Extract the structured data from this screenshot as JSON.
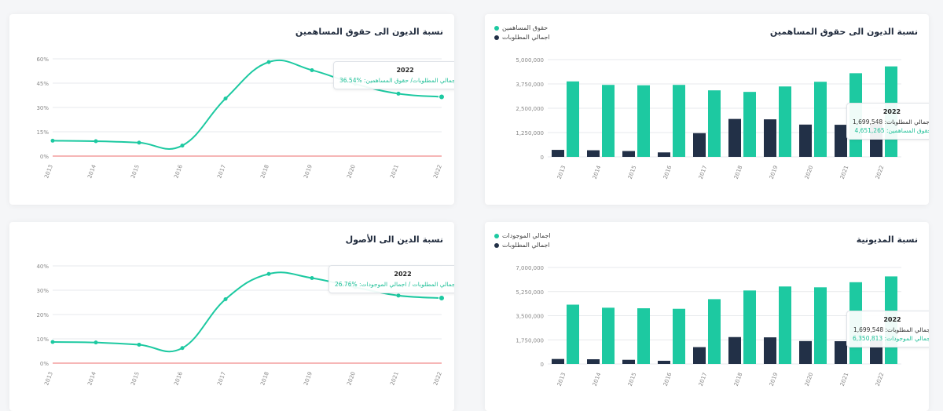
{
  "colors": {
    "green": "#1dc9a1",
    "navy": "#223047",
    "zero_line": "#f08a8a",
    "grid": "#e7e9ec",
    "axis_text": "#888888"
  },
  "chart_data": [
    {
      "id": "debt-equity-line",
      "type": "line",
      "title": "نسبة الديون الى حقوق المساهمين",
      "categories": [
        "2013",
        "2014",
        "2015",
        "2016",
        "2017",
        "2018",
        "2019",
        "2020",
        "2021",
        "2022"
      ],
      "series": [
        {
          "values": [
            9.5,
            9.2,
            8.3,
            6.5,
            35.5,
            58,
            53,
            44.5,
            38.5,
            36.54
          ]
        }
      ],
      "yticks": [
        0,
        15,
        30,
        45,
        60
      ],
      "ytick_labels": [
        "0%",
        "15%",
        "30%",
        "45%",
        "60%"
      ],
      "ylim": [
        0,
        60
      ],
      "tooltip": {
        "year": "2022",
        "line": "نسبة اجمالي المطلوبات/ حقوق المساهمين:",
        "value": "36.54%"
      }
    },
    {
      "id": "debt-equity-bar",
      "type": "bar",
      "title": "نسبة الديون الى حقوق المساهمين",
      "categories": [
        "2013",
        "2014",
        "2015",
        "2016",
        "2017",
        "2018",
        "2019",
        "2020",
        "2021",
        "2022"
      ],
      "series": [
        {
          "name": "حقوق المساهمين",
          "color": "#1dc9a1",
          "values": [
            3880000,
            3700000,
            3680000,
            3700000,
            3420000,
            3340000,
            3620000,
            3860000,
            4300000,
            4651265
          ]
        },
        {
          "name": "اجمالي المطلوبات",
          "color": "#223047",
          "values": [
            360000,
            340000,
            300000,
            230000,
            1220000,
            1950000,
            1930000,
            1660000,
            1650000,
            1699548
          ]
        }
      ],
      "yticks": [
        0,
        1250000,
        2500000,
        3750000,
        5000000
      ],
      "ytick_labels": [
        "0",
        "1,250,000",
        "2,500,000",
        "3,750,000",
        "5,000,000"
      ],
      "ylim": [
        0,
        5000000
      ],
      "legend": [
        "حقوق المساهمين",
        "اجمالي المطلوبات"
      ],
      "tooltip": {
        "year": "2022",
        "line1_label": "اجمالي المطلوبات:",
        "line1_value": "1,699,548",
        "line2_label": "حقوق المساهمين:",
        "line2_value": "4,651,265"
      }
    },
    {
      "id": "debt-assets-line",
      "type": "line",
      "title": "نسبة الدين الى الأصول",
      "categories": [
        "2013",
        "2014",
        "2015",
        "2016",
        "2017",
        "2018",
        "2019",
        "2020",
        "2021",
        "2022"
      ],
      "series": [
        {
          "values": [
            8.7,
            8.5,
            7.6,
            6.2,
            26.3,
            36.7,
            35,
            31.2,
            27.8,
            26.76
          ]
        }
      ],
      "yticks": [
        0,
        10,
        20,
        30,
        40
      ],
      "ytick_labels": [
        "0%",
        "10%",
        "20%",
        "30%",
        "40%"
      ],
      "ylim": [
        0,
        40
      ],
      "tooltip": {
        "year": "2022",
        "line": "نسبة اجمالي المطلوبات / اجمالي الموجودات:",
        "value": "26.76%"
      }
    },
    {
      "id": "indebtedness-bar",
      "type": "bar",
      "title": "نسبة المديونية",
      "categories": [
        "2013",
        "2014",
        "2015",
        "2016",
        "2017",
        "2018",
        "2019",
        "2020",
        "2021",
        "2022"
      ],
      "series": [
        {
          "name": "اجمالي الموجودات",
          "color": "#1dc9a1",
          "values": [
            4300000,
            4080000,
            4040000,
            4000000,
            4700000,
            5330000,
            5620000,
            5560000,
            5930000,
            6350813
          ]
        },
        {
          "name": "اجمالي المطلوبات",
          "color": "#223047",
          "values": [
            360000,
            340000,
            300000,
            230000,
            1220000,
            1950000,
            1930000,
            1660000,
            1650000,
            1699548
          ]
        }
      ],
      "yticks": [
        0,
        1750000,
        3500000,
        5250000,
        7000000
      ],
      "ytick_labels": [
        "0",
        "1,750,000",
        "3,500,000",
        "5,250,000",
        "7,000,000"
      ],
      "ylim": [
        0,
        7000000
      ],
      "legend": [
        "اجمالي الموجودات",
        "اجمالي المطلوبات"
      ],
      "tooltip": {
        "year": "2022",
        "line1_label": "اجمالي المطلوبات:",
        "line1_value": "1,699,548",
        "line2_label": "اجمالي الموجودات:",
        "line2_value": "6,350,813"
      }
    }
  ]
}
